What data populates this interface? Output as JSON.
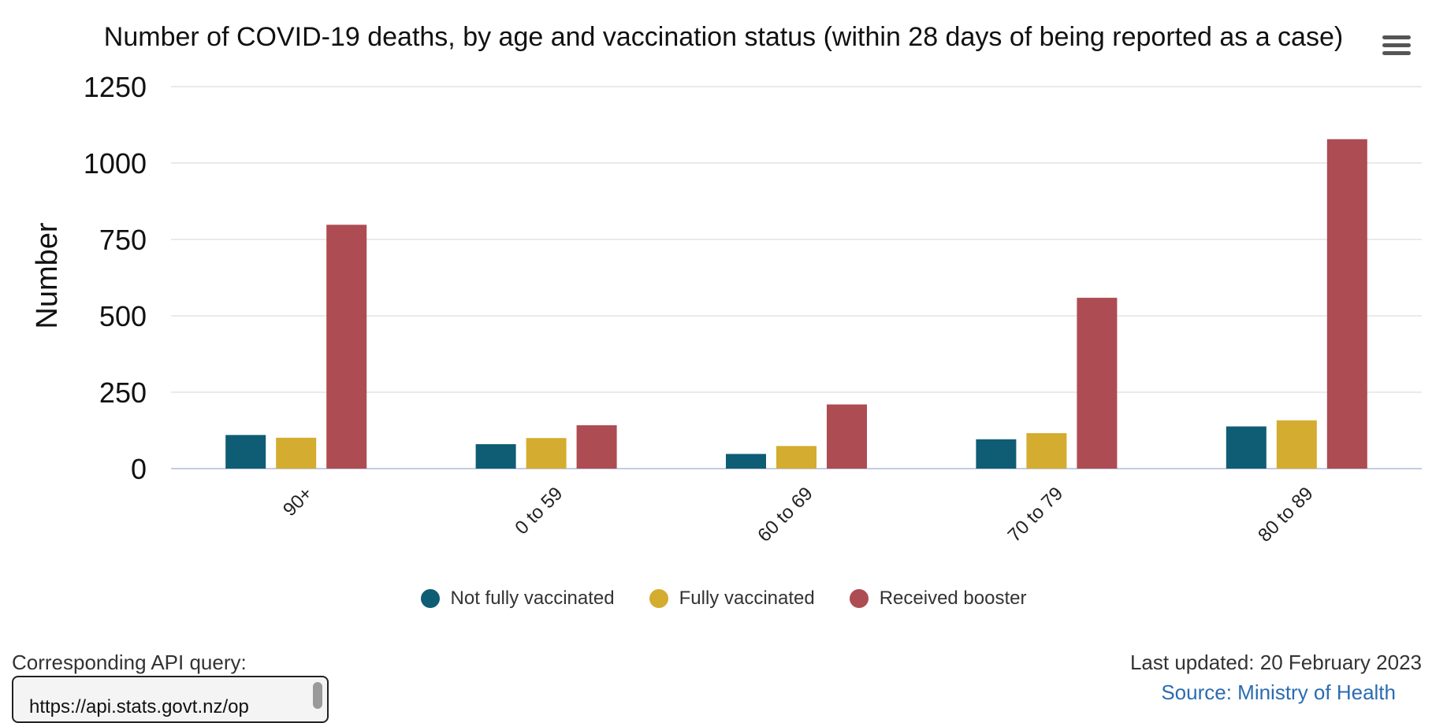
{
  "chart_data": {
    "type": "bar",
    "title": "Number of COVID-19 deaths, by age and vaccination status (within 28 days of being reported as a case)",
    "xlabel": "",
    "ylabel": "Number",
    "ylim": [
      0,
      1250
    ],
    "yticks": [
      0,
      250,
      500,
      750,
      1000,
      1250
    ],
    "grid": true,
    "legend_position": "bottom-center",
    "categories": [
      "90+",
      "0 to 59",
      "60 to 69",
      "70 to 79",
      "80 to 89"
    ],
    "series": [
      {
        "name": "Not fully vaccinated",
        "color": "#0f5c75",
        "values": [
          110,
          80,
          48,
          96,
          138
        ]
      },
      {
        "name": "Fully vaccinated",
        "color": "#d4ac2f",
        "values": [
          101,
          100,
          74,
          116,
          158
        ]
      },
      {
        "name": "Received booster",
        "color": "#ad4c52",
        "values": [
          798,
          142,
          210,
          559,
          1078
        ]
      }
    ]
  },
  "footer": {
    "api_label": "Corresponding API query:",
    "api_query": "https://api.stats.govt.nz/op",
    "last_updated": "Last updated: 20 February 2023",
    "source": "Source: Ministry of Health"
  },
  "menu": {
    "icon": "hamburger-menu-icon"
  }
}
